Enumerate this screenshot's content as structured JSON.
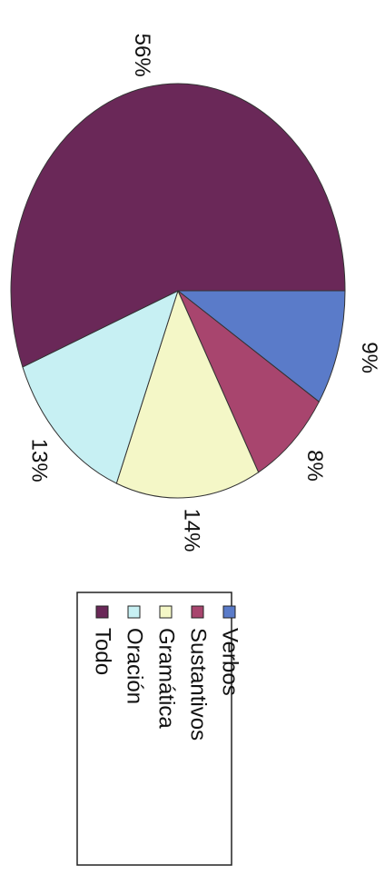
{
  "chart_data": {
    "type": "pie",
    "orientation": "rotated-90-clockwise",
    "legend_placement": "bottom",
    "categories": [
      "Verbos",
      "Sustantivos",
      "Gramática",
      "Oración",
      "Todo"
    ],
    "values": [
      9,
      8,
      14,
      13,
      56
    ],
    "labels": [
      "9%",
      "8%",
      "14%",
      "13%",
      "56%"
    ],
    "colors": [
      "#5a7bc9",
      "#a8456e",
      "#f4f7c7",
      "#c7f0f3",
      "#6a2858"
    ]
  }
}
